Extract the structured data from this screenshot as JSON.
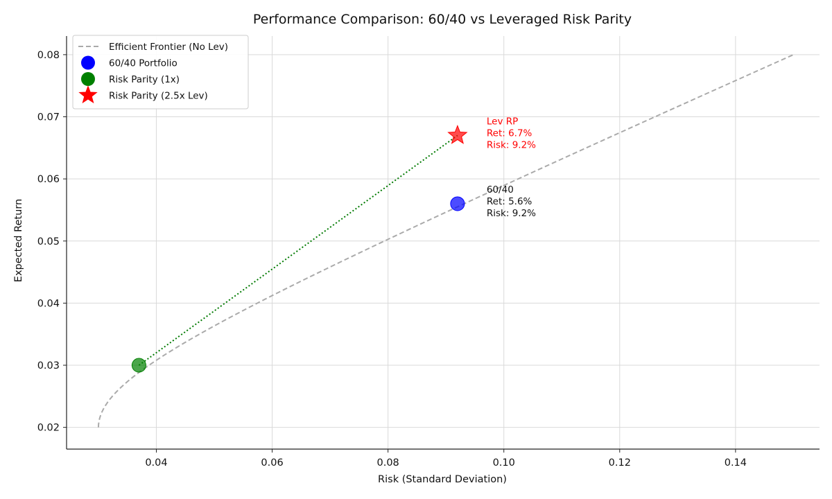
{
  "chart_data": {
    "type": "scatter",
    "title": "Performance Comparison: 60/40 vs Leveraged Risk Parity",
    "xlabel": "Risk (Standard Deviation)",
    "ylabel": "Expected Return",
    "xlim": [
      0.0245,
      0.1545
    ],
    "ylim": [
      0.0165,
      0.083
    ],
    "xticks": [
      0.04,
      0.06,
      0.08,
      0.1,
      0.12,
      0.14
    ],
    "xtick_labels": [
      "0.04",
      "0.06",
      "0.08",
      "0.10",
      "0.12",
      "0.14"
    ],
    "yticks": [
      0.02,
      0.03,
      0.04,
      0.05,
      0.06,
      0.07,
      0.08
    ],
    "ytick_labels": [
      "0.02",
      "0.03",
      "0.04",
      "0.05",
      "0.06",
      "0.07",
      "0.08"
    ],
    "grid": true,
    "legend_position": "top-left",
    "frontier": {
      "name": "Efficient Frontier (No Lev)",
      "color": "#aaaaaa",
      "min_variance_point": [
        0.03,
        0.02
      ],
      "end_point": [
        0.15,
        0.08
      ]
    },
    "leverage_line": {
      "from": [
        0.037,
        0.03
      ],
      "to": [
        0.092,
        0.067
      ],
      "color": "#007a00"
    },
    "points": [
      {
        "id": "p6040",
        "name": "60/40 Portfolio",
        "x": 0.092,
        "y": 0.056,
        "marker": "circle",
        "color": "#0000ff",
        "annotation": [
          "60/40",
          "Ret: 5.6%",
          "Risk: 9.2%"
        ],
        "annotation_color": "#111111"
      },
      {
        "id": "rp1x",
        "name": "Risk Parity (1x)",
        "x": 0.037,
        "y": 0.03,
        "marker": "circle",
        "color": "#008000",
        "annotation": [],
        "annotation_color": "#111111"
      },
      {
        "id": "rplev",
        "name": "Risk Parity (2.5x Lev)",
        "x": 0.092,
        "y": 0.067,
        "marker": "star",
        "color": "#ff0000",
        "annotation": [
          "Lev RP",
          "Ret: 6.7%",
          "Risk: 9.2%"
        ],
        "annotation_color": "#ff0000"
      }
    ],
    "legend": [
      {
        "label": "Efficient Frontier (No Lev)",
        "marker": "dashed-line",
        "color": "#aaaaaa"
      },
      {
        "label": "60/40 Portfolio",
        "marker": "circle",
        "color": "#0000ff"
      },
      {
        "label": "Risk Parity (1x)",
        "marker": "circle",
        "color": "#008000"
      },
      {
        "label": "Risk Parity (2.5x Lev)",
        "marker": "star",
        "color": "#ff0000"
      }
    ]
  }
}
